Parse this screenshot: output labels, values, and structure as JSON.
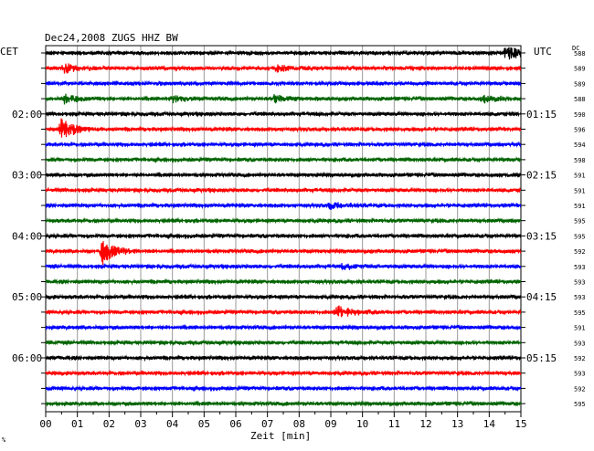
{
  "header": {
    "title": "Dec24,2008   ZUGS HHZ BW",
    "left_zone": "CET",
    "right_zone": "UTC",
    "dc_label": "DC",
    "footnote": "%"
  },
  "colors": {
    "trace_cycle": [
      "#000000",
      "#ff0000",
      "#0000ff",
      "#006400"
    ],
    "grid": "#9a9a9a",
    "frame": "#000000"
  },
  "chart_data": {
    "type": "line",
    "title": "Dec24,2008   ZUGS HHZ BW",
    "xlabel": "Zeit [min]",
    "xlim": [
      0,
      15
    ],
    "x_ticks": [
      "00",
      "01",
      "02",
      "03",
      "04",
      "05",
      "06",
      "07",
      "08",
      "09",
      "10",
      "11",
      "12",
      "13",
      "14",
      "15"
    ],
    "grid": true,
    "rows": 24,
    "left_time_labels": [
      {
        "row": 4,
        "label": "02:00"
      },
      {
        "row": 8,
        "label": "03:00"
      },
      {
        "row": 12,
        "label": "04:00"
      },
      {
        "row": 16,
        "label": "05:00"
      },
      {
        "row": 20,
        "label": "06:00"
      }
    ],
    "right_time_labels": [
      {
        "row": 0,
        "label": "UTC"
      },
      {
        "row": 4,
        "label": "01:15"
      },
      {
        "row": 8,
        "label": "02:15"
      },
      {
        "row": 12,
        "label": "03:15"
      },
      {
        "row": 16,
        "label": "04:15"
      },
      {
        "row": 20,
        "label": "05:15"
      }
    ],
    "dc_values": [
      "588",
      "589",
      "589",
      "588",
      "590",
      "596",
      "594",
      "598",
      "591",
      "591",
      "591",
      "595",
      "595",
      "592",
      "593",
      "593",
      "593",
      "595",
      "591",
      "593",
      "592",
      "593",
      "592",
      "595"
    ],
    "events": [
      {
        "row": 0,
        "minute": 14.5,
        "amplitude": 4.0
      },
      {
        "row": 1,
        "minute": 0.6,
        "amplitude": 2.0
      },
      {
        "row": 1,
        "minute": 7.3,
        "amplitude": 1.6
      },
      {
        "row": 3,
        "minute": 0.6,
        "amplitude": 2.0
      },
      {
        "row": 3,
        "minute": 4.0,
        "amplitude": 1.6
      },
      {
        "row": 3,
        "minute": 7.2,
        "amplitude": 1.8
      },
      {
        "row": 3,
        "minute": 13.8,
        "amplitude": 1.6
      },
      {
        "row": 5,
        "minute": 0.5,
        "amplitude": 5.0
      },
      {
        "row": 10,
        "minute": 9.0,
        "amplitude": 1.6
      },
      {
        "row": 13,
        "minute": 1.8,
        "amplitude": 6.0
      },
      {
        "row": 14,
        "minute": 9.4,
        "amplitude": 1.5
      },
      {
        "row": 17,
        "minute": 9.2,
        "amplitude": 3.5
      }
    ]
  }
}
